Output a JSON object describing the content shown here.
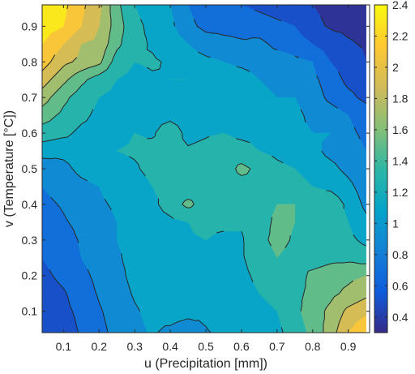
{
  "chart_data": {
    "type": "heatmap",
    "subtype": "filled-contour",
    "xlabel": "u (Precipitation [mm])",
    "ylabel": "v (Temperature [°C])",
    "x": [
      0.04,
      0.1,
      0.15,
      0.2,
      0.25,
      0.3,
      0.35,
      0.4,
      0.45,
      0.5,
      0.55,
      0.6,
      0.65,
      0.7,
      0.75,
      0.8,
      0.85,
      0.9,
      0.95
    ],
    "y": [
      0.04,
      0.1,
      0.15,
      0.2,
      0.25,
      0.3,
      0.35,
      0.4,
      0.45,
      0.5,
      0.55,
      0.6,
      0.65,
      0.7,
      0.75,
      0.8,
      0.85,
      0.9,
      0.96
    ],
    "z": [
      [
        0.4,
        0.5,
        0.62,
        0.75,
        0.85,
        0.95,
        1.02,
        0.95,
        0.85,
        0.98,
        1.05,
        1.05,
        1.1,
        1.15,
        1.3,
        1.45,
        1.7,
        2.0,
        2.2
      ],
      [
        0.45,
        0.55,
        0.65,
        0.78,
        0.88,
        0.98,
        1.05,
        1.1,
        1.08,
        1.05,
        1.15,
        1.08,
        1.15,
        1.2,
        1.35,
        1.5,
        1.65,
        1.85,
        1.95
      ],
      [
        0.5,
        0.58,
        0.7,
        0.82,
        0.92,
        1.02,
        1.08,
        1.12,
        1.1,
        1.05,
        1.08,
        1.12,
        1.2,
        1.25,
        1.35,
        1.45,
        1.55,
        1.65,
        1.75
      ],
      [
        0.55,
        0.65,
        0.75,
        0.85,
        0.95,
        1.05,
        1.1,
        1.05,
        1.1,
        1.12,
        1.1,
        1.15,
        1.25,
        1.35,
        1.3,
        1.45,
        1.5,
        1.55,
        1.6
      ],
      [
        0.6,
        0.7,
        0.8,
        0.88,
        0.98,
        1.05,
        1.08,
        1.1,
        1.15,
        1.1,
        1.12,
        1.18,
        1.3,
        1.4,
        1.35,
        1.3,
        1.35,
        1.35,
        1.3
      ],
      [
        0.65,
        0.72,
        0.82,
        0.92,
        1.0,
        1.05,
        1.1,
        1.12,
        1.18,
        1.2,
        1.15,
        1.18,
        1.35,
        1.45,
        1.38,
        1.25,
        1.3,
        1.25,
        1.15
      ],
      [
        0.7,
        0.78,
        0.85,
        0.95,
        1.0,
        1.08,
        1.1,
        1.15,
        1.2,
        1.25,
        1.25,
        1.22,
        1.3,
        1.45,
        1.4,
        1.3,
        1.3,
        1.2,
        1.05
      ],
      [
        0.75,
        0.82,
        0.9,
        0.98,
        1.02,
        1.1,
        1.15,
        1.3,
        1.45,
        1.3,
        1.25,
        1.25,
        1.3,
        1.4,
        1.4,
        1.35,
        1.35,
        1.15,
        0.95
      ],
      [
        0.8,
        0.88,
        0.95,
        1.0,
        1.05,
        1.12,
        1.2,
        1.25,
        1.28,
        1.3,
        1.3,
        1.32,
        1.35,
        1.38,
        1.3,
        1.2,
        1.15,
        1.05,
        0.9
      ],
      [
        0.85,
        0.95,
        1.05,
        1.1,
        1.15,
        1.18,
        1.25,
        1.28,
        1.3,
        1.28,
        1.3,
        1.45,
        1.35,
        1.25,
        1.2,
        1.1,
        1.05,
        0.95,
        0.85
      ],
      [
        1.1,
        1.05,
        1.1,
        1.15,
        1.2,
        1.22,
        1.25,
        1.25,
        1.22,
        1.25,
        1.3,
        1.28,
        1.2,
        1.15,
        1.1,
        1.05,
        0.95,
        0.9,
        0.8
      ],
      [
        1.3,
        1.25,
        1.15,
        1.12,
        1.15,
        1.2,
        1.18,
        1.3,
        1.15,
        1.18,
        1.2,
        1.15,
        1.15,
        1.1,
        1.05,
        1.0,
        1.0,
        0.85,
        0.75
      ],
      [
        1.5,
        1.35,
        1.25,
        1.15,
        1.1,
        1.12,
        1.15,
        1.15,
        1.12,
        1.15,
        1.18,
        1.15,
        1.1,
        1.12,
        1.05,
        0.95,
        0.9,
        0.8,
        0.7
      ],
      [
        1.7,
        1.45,
        1.3,
        1.2,
        1.15,
        1.12,
        1.15,
        1.15,
        1.18,
        1.15,
        1.18,
        1.15,
        1.05,
        1.0,
        1.0,
        0.9,
        0.75,
        0.65,
        0.55
      ],
      [
        1.9,
        1.65,
        1.45,
        1.3,
        1.2,
        1.15,
        1.18,
        1.2,
        1.2,
        1.15,
        1.12,
        1.1,
        1.0,
        0.95,
        0.9,
        0.85,
        0.7,
        0.55,
        0.5
      ],
      [
        2.1,
        1.85,
        1.75,
        1.65,
        1.3,
        1.2,
        1.22,
        1.18,
        1.1,
        1.05,
        1.0,
        0.95,
        0.92,
        0.9,
        0.85,
        0.8,
        0.6,
        0.5,
        0.4
      ],
      [
        2.2,
        2.0,
        1.8,
        1.75,
        1.45,
        1.25,
        1.18,
        1.1,
        1.0,
        0.9,
        0.85,
        0.82,
        0.85,
        0.75,
        0.7,
        0.6,
        0.5,
        0.42,
        0.38
      ],
      [
        2.3,
        2.2,
        2.0,
        1.8,
        1.5,
        1.25,
        1.15,
        1.05,
        0.85,
        0.75,
        0.75,
        0.75,
        0.7,
        0.65,
        0.6,
        0.45,
        0.38,
        0.36,
        0.35
      ],
      [
        2.3,
        2.25,
        2.05,
        1.85,
        1.45,
        1.2,
        1.1,
        1.0,
        0.8,
        0.7,
        0.65,
        0.6,
        0.55,
        0.5,
        0.45,
        0.4,
        0.35,
        0.33,
        0.32
      ]
    ],
    "xlim": [
      0.04,
      0.96
    ],
    "ylim": [
      0.04,
      0.96
    ],
    "xticks": [
      0.1,
      0.2,
      0.3,
      0.4,
      0.5,
      0.6,
      0.7,
      0.8,
      0.9
    ],
    "yticks": [
      0.1,
      0.2,
      0.3,
      0.4,
      0.5,
      0.6,
      0.7,
      0.8,
      0.9
    ],
    "xticklabels": [
      "0.1",
      "0.2",
      "0.3",
      "0.4",
      "0.5",
      "0.6",
      "0.7",
      "0.8",
      "0.9"
    ],
    "yticklabels": [
      "0.1",
      "0.2",
      "0.3",
      "0.4",
      "0.5",
      "0.6",
      "0.7",
      "0.8",
      "0.9"
    ],
    "levels": [
      0.4,
      0.6,
      0.8,
      1.0,
      1.2,
      1.4,
      1.6,
      1.8,
      2.0,
      2.2
    ],
    "colorbar": {
      "range": [
        0.3,
        2.4
      ],
      "ticks": [
        0.4,
        0.6,
        0.8,
        1.0,
        1.2,
        1.4,
        1.6,
        1.8,
        2.0,
        2.2,
        2.4
      ],
      "ticklabels": [
        "0.4",
        "0.6",
        "0.8",
        "1",
        "1.2",
        "1.4",
        "1.6",
        "1.8",
        "2",
        "2.2",
        "2.4"
      ],
      "colormap": "parula",
      "colors": [
        "#352a87",
        "#0f5cdd",
        "#1481d6",
        "#06a4ca",
        "#2eb7a4",
        "#87bf77",
        "#d1bb59",
        "#fec832",
        "#f9fb0e"
      ]
    },
    "grid": false
  }
}
